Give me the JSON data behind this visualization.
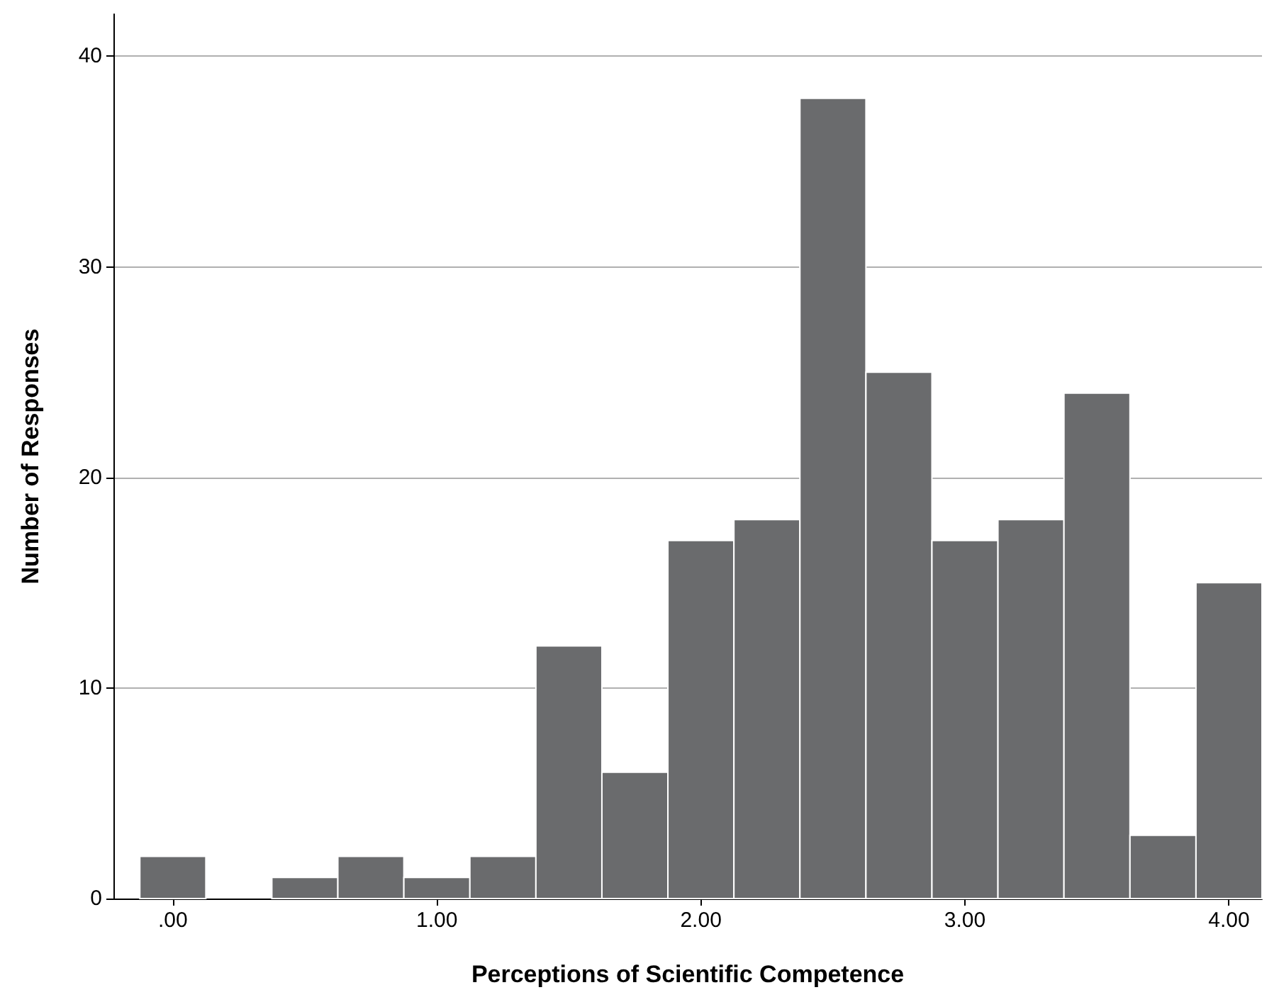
{
  "chart_data": {
    "type": "histogram",
    "xlabel": "Perceptions of Scientific Competence",
    "ylabel": "Number of Responses",
    "bins": [
      -0.125,
      0.125,
      0.375,
      0.625,
      0.875,
      1.125,
      1.375,
      1.625,
      1.875,
      2.125,
      2.375,
      2.625,
      2.875,
      3.125,
      3.375,
      3.625,
      3.875,
      4.125
    ],
    "values": [
      2,
      0,
      1,
      2,
      1,
      2,
      12,
      6,
      17,
      18,
      38,
      25,
      17,
      18,
      24,
      3,
      15
    ],
    "color": "#6a6b6d",
    "xlim": [
      -0.225,
      4.125
    ],
    "xticks": [
      {
        "value": 0,
        "label": ".00"
      },
      {
        "value": 1,
        "label": "1.00"
      },
      {
        "value": 2,
        "label": "2.00"
      },
      {
        "value": 3,
        "label": "3.00"
      },
      {
        "value": 4,
        "label": "4.00"
      }
    ],
    "ylim": [
      0,
      42
    ],
    "yticks": [
      0,
      10,
      20,
      30,
      40
    ],
    "grid": "y"
  }
}
